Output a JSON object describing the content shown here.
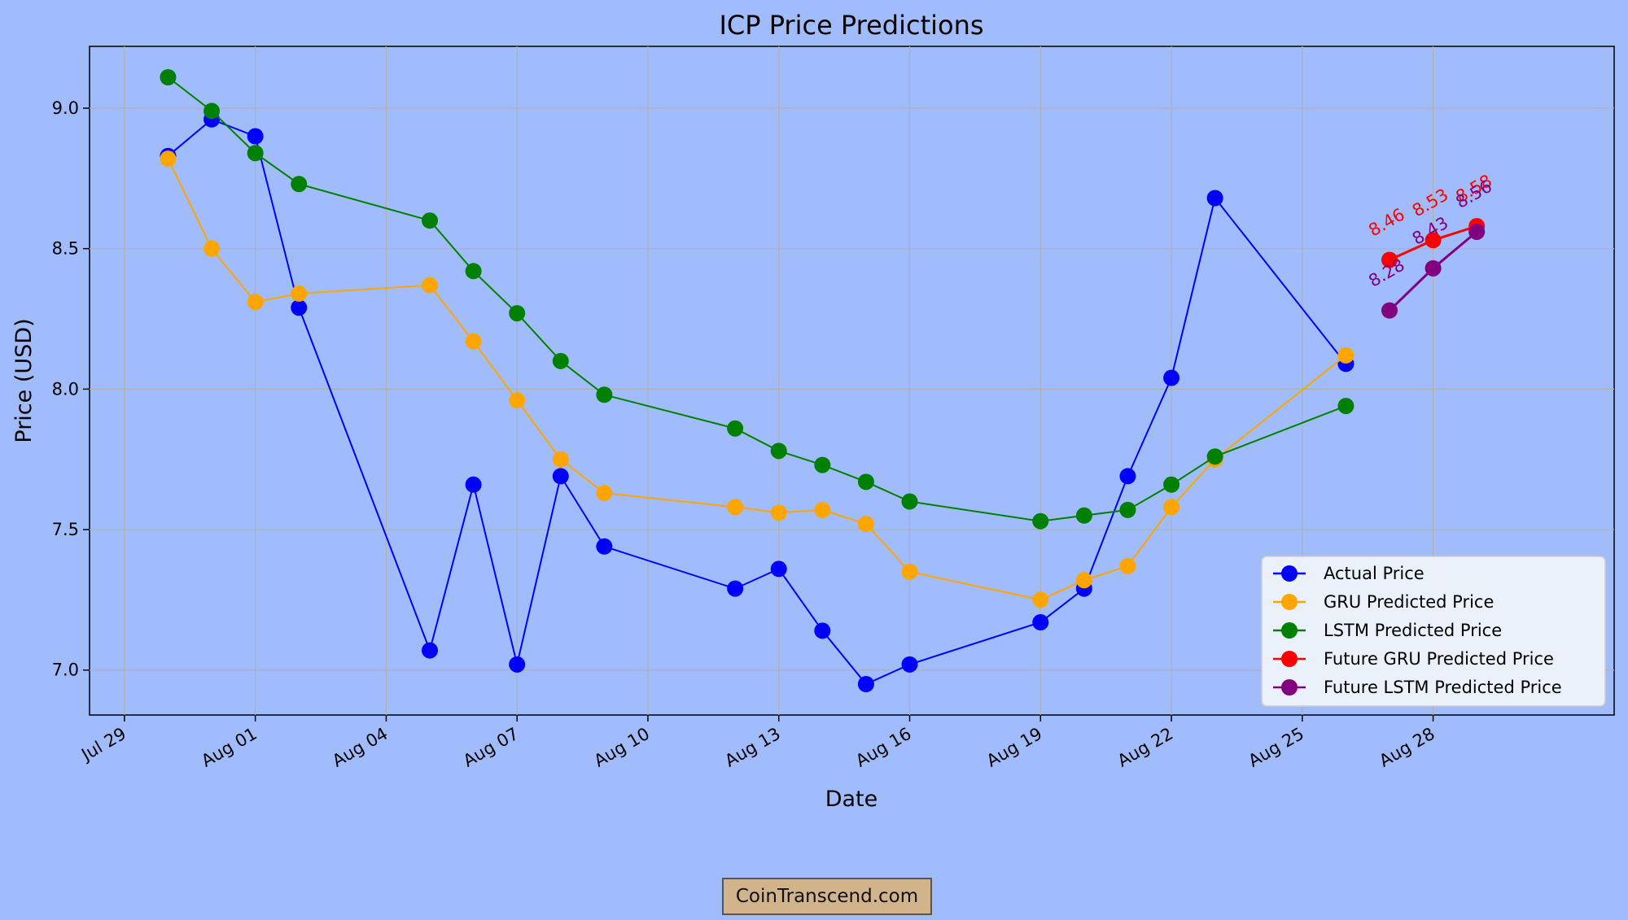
{
  "chart_data": {
    "type": "line",
    "title": "ICP Price Predictions",
    "xlabel": "Date",
    "ylabel": "Price (USD)",
    "xlim_day": [
      -0.8,
      34.15
    ],
    "ylim": [
      6.84,
      9.22
    ],
    "grid": true,
    "legend_position": "lower-right",
    "x_ticks": [
      {
        "day": 0,
        "label": "Jul 29"
      },
      {
        "day": 3,
        "label": "Aug 01"
      },
      {
        "day": 6,
        "label": "Aug 04"
      },
      {
        "day": 9,
        "label": "Aug 07"
      },
      {
        "day": 12,
        "label": "Aug 10"
      },
      {
        "day": 15,
        "label": "Aug 13"
      },
      {
        "day": 18,
        "label": "Aug 16"
      },
      {
        "day": 21,
        "label": "Aug 19"
      },
      {
        "day": 24,
        "label": "Aug 22"
      },
      {
        "day": 27,
        "label": "Aug 25"
      },
      {
        "day": 30,
        "label": "Aug 28"
      }
    ],
    "y_ticks": [
      {
        "value": 7.0,
        "label": "7.0"
      },
      {
        "value": 7.5,
        "label": "7.5"
      },
      {
        "value": 8.0,
        "label": "8.0"
      },
      {
        "value": 8.5,
        "label": "8.5"
      },
      {
        "value": 9.0,
        "label": "9.0"
      }
    ],
    "series": [
      {
        "name": "Actual Price",
        "color": "#0000ff",
        "x": [
          1,
          2,
          3,
          4,
          7,
          8,
          9,
          10,
          11,
          14,
          15,
          16,
          17,
          18,
          21,
          22,
          23,
          24,
          25,
          28
        ],
        "values": [
          8.83,
          8.96,
          8.9,
          8.29,
          7.07,
          7.66,
          7.02,
          7.69,
          7.44,
          7.29,
          7.36,
          7.14,
          6.95,
          7.02,
          7.17,
          7.29,
          7.69,
          8.04,
          8.68,
          8.09
        ]
      },
      {
        "name": "GRU Predicted Price",
        "color": "#ffa500",
        "x": [
          1,
          2,
          3,
          4,
          7,
          8,
          9,
          10,
          11,
          14,
          15,
          16,
          17,
          18,
          21,
          22,
          23,
          24,
          25,
          28
        ],
        "values": [
          8.82,
          8.5,
          8.31,
          8.34,
          8.37,
          8.17,
          7.96,
          7.75,
          7.63,
          7.58,
          7.56,
          7.57,
          7.52,
          7.35,
          7.25,
          7.32,
          7.37,
          7.58,
          7.75,
          8.12
        ]
      },
      {
        "name": "LSTM Predicted Price",
        "color": "#008000",
        "x": [
          1,
          2,
          3,
          4,
          7,
          8,
          9,
          10,
          11,
          14,
          15,
          16,
          17,
          18,
          21,
          22,
          23,
          24,
          25,
          28
        ],
        "values": [
          9.11,
          8.99,
          8.84,
          8.73,
          8.6,
          8.42,
          8.27,
          8.1,
          7.98,
          7.86,
          7.78,
          7.73,
          7.67,
          7.6,
          7.53,
          7.55,
          7.57,
          7.66,
          7.76,
          7.94
        ]
      },
      {
        "name": "Future GRU Predicted Price",
        "color": "#ff0000",
        "x": [
          29,
          30,
          31
        ],
        "values": [
          8.46,
          8.53,
          8.58
        ],
        "labels": [
          "8.46",
          "8.53",
          "8.58"
        ]
      },
      {
        "name": "Future LSTM Predicted Price",
        "color": "#800080",
        "x": [
          29,
          30,
          31
        ],
        "values": [
          8.28,
          8.43,
          8.56
        ],
        "labels": [
          "8.28",
          "8.43",
          "8.56"
        ]
      }
    ]
  },
  "watermark": "CoinTranscend.com"
}
